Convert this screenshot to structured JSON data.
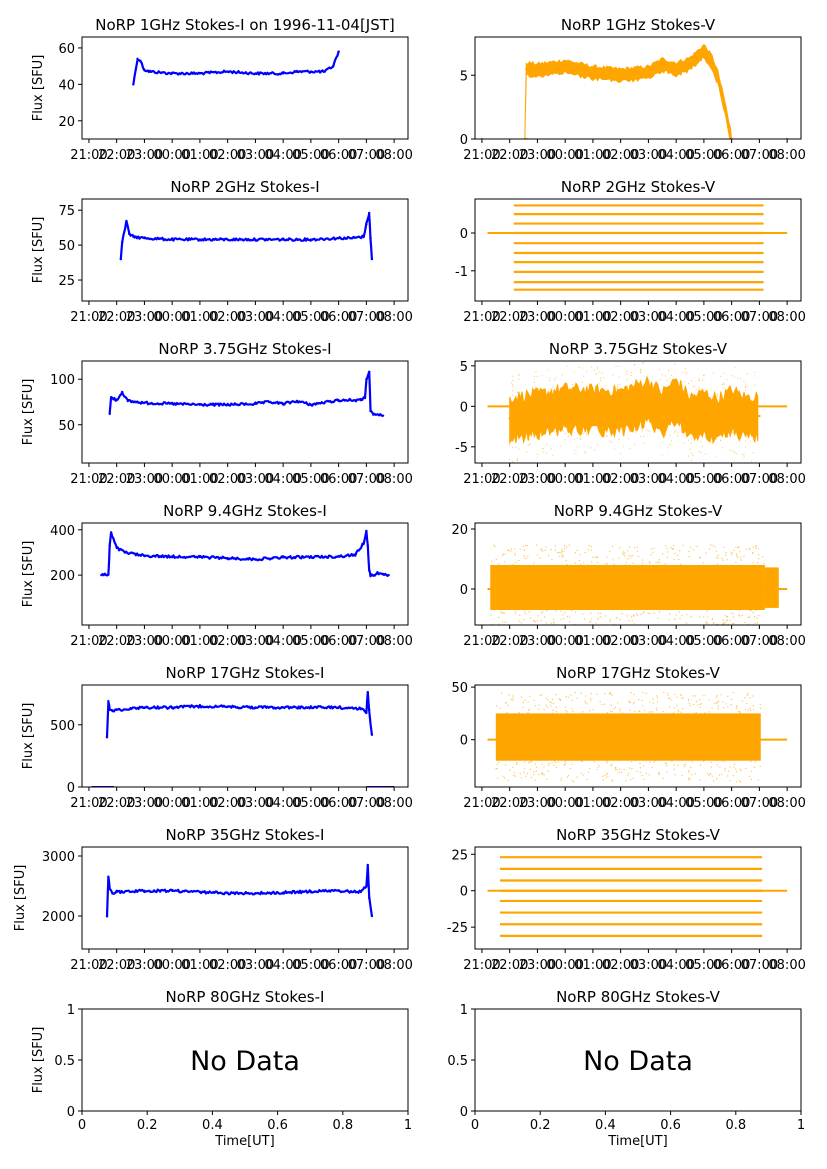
{
  "figure": {
    "ylabel": "Flux [SFU]",
    "xlabel": "Time[UT]",
    "time_ticks": [
      "21:00",
      "22:00",
      "23:00",
      "00:00",
      "01:00",
      "02:00",
      "03:00",
      "04:00",
      "05:00",
      "06:00",
      "07:00",
      "08:00"
    ],
    "colors": {
      "stokes_i": "#0000ff",
      "stokes_v": "#ffa500",
      "axes": "#000000",
      "bg": "#ffffff"
    }
  },
  "chart_data": [
    {
      "type": "line",
      "title": "NoRP 1GHz Stokes-I on 1996-11-04[JST]",
      "series_name": "Stokes-I",
      "color": "#0000ff",
      "xlim": [
        20.75,
        32.5
      ],
      "ylim": [
        10,
        66
      ],
      "yticks": [
        20,
        40,
        60
      ],
      "x": [
        22.6,
        22.75,
        22.85,
        23.0,
        23.2,
        24.0,
        25.0,
        26.0,
        27.0,
        28.0,
        28.5,
        29.0,
        29.5,
        29.8,
        30.0
      ],
      "y": [
        40,
        54,
        53,
        48,
        47,
        46,
        46,
        47,
        46,
        46,
        47,
        47,
        47,
        50,
        58
      ]
    },
    {
      "type": "scatter",
      "title": "NoRP 1GHz Stokes-V",
      "series_name": "Stokes-V",
      "color": "#ffa500",
      "xlim": [
        20.75,
        32.5
      ],
      "ylim": [
        0,
        8
      ],
      "yticks": [
        0,
        5
      ],
      "x": [
        21.0,
        22.6,
        22.6,
        23.0,
        24.0,
        25.0,
        26.0,
        27.0,
        27.5,
        28.0,
        28.5,
        28.7,
        29.0,
        29.3,
        29.5,
        29.7,
        29.8,
        29.9,
        30.0,
        32.0
      ],
      "y": [
        0,
        0,
        5.5,
        5.4,
        5.7,
        5.2,
        5.0,
        5.2,
        5.8,
        5.5,
        5.9,
        6.3,
        6.9,
        6.0,
        4.8,
        3.0,
        2.0,
        0.8,
        0,
        0
      ]
    },
    {
      "type": "line",
      "title": "NoRP 2GHz Stokes-I",
      "series_name": "Stokes-I",
      "color": "#0000ff",
      "xlim": [
        20.75,
        32.5
      ],
      "ylim": [
        10,
        83
      ],
      "yticks": [
        25,
        50,
        75
      ],
      "x": [
        22.15,
        22.2,
        22.35,
        22.45,
        22.6,
        23.0,
        24.0,
        25.0,
        26.0,
        27.0,
        28.0,
        29.0,
        30.0,
        30.5,
        30.9,
        31.0,
        31.1,
        31.15,
        31.2
      ],
      "y": [
        40,
        52,
        67,
        58,
        56,
        55,
        54,
        54,
        54,
        54,
        54,
        54,
        55,
        55,
        56,
        65,
        73,
        55,
        40
      ]
    },
    {
      "type": "scatter",
      "title": "NoRP 2GHz Stokes-V",
      "series_name": "Stokes-V",
      "color": "#ffa500",
      "xlim": [
        20.75,
        32.5
      ],
      "ylim": [
        -1.8,
        0.9
      ],
      "yticks": [
        -1,
        0
      ],
      "levels": [
        0.73,
        0.5,
        0.25,
        0,
        -0.27,
        -0.53,
        -0.77,
        -1.03,
        -1.3,
        -1.5
      ],
      "x_range": [
        22.15,
        31.15
      ],
      "zero_line": [
        21.2,
        32.0
      ]
    },
    {
      "type": "line",
      "title": "NoRP 3.75GHz Stokes-I",
      "series_name": "Stokes-I",
      "color": "#0000ff",
      "xlim": [
        20.75,
        32.5
      ],
      "ylim": [
        8,
        120
      ],
      "yticks": [
        50,
        100
      ],
      "x": [
        21.75,
        21.8,
        22.0,
        22.2,
        22.4,
        23.0,
        24.0,
        25.0,
        26.0,
        27.0,
        27.5,
        28.0,
        28.5,
        29.0,
        30.0,
        30.8,
        30.95,
        31.0,
        31.1,
        31.15,
        31.25,
        31.5,
        31.6
      ],
      "y": [
        62,
        80,
        77,
        86,
        76,
        74,
        73,
        72,
        72,
        73,
        75,
        73,
        76,
        72,
        77,
        77,
        80,
        100,
        108,
        65,
        61,
        61,
        60
      ]
    },
    {
      "type": "scatter",
      "title": "NoRP 3.75GHz Stokes-V",
      "series_name": "Stokes-V",
      "color": "#ffa500",
      "xlim": [
        20.75,
        32.5
      ],
      "ylim": [
        -7,
        5.6
      ],
      "yticks": [
        -5,
        0,
        5
      ],
      "x": [
        22.0,
        22.5,
        23.0,
        24.0,
        25.0,
        26.0,
        27.0,
        27.5,
        28.0,
        28.5,
        29.0,
        29.5,
        30.0,
        30.5,
        31.0
      ],
      "y": [
        -1.5,
        -1.2,
        -1.0,
        -0.3,
        -0.5,
        -0.6,
        0.7,
        -0.8,
        0.8,
        -1.4,
        -0.8,
        -1.6,
        -0.5,
        -1.4,
        -1.2
      ],
      "zero_line": [
        21.2,
        32.0
      ]
    },
    {
      "type": "line",
      "title": "NoRP 9.4GHz Stokes-I",
      "series_name": "Stokes-I",
      "color": "#0000ff",
      "xlim": [
        20.75,
        32.5
      ],
      "ylim": [
        -20,
        430
      ],
      "yticks": [
        200,
        400
      ],
      "x": [
        21.45,
        21.7,
        21.75,
        21.8,
        22.0,
        22.3,
        23.0,
        24.0,
        25.0,
        26.0,
        27.0,
        28.0,
        29.0,
        30.0,
        30.6,
        30.9,
        31.0,
        31.05,
        31.1,
        31.15,
        31.3,
        31.4,
        31.6,
        31.8
      ],
      "y": [
        200,
        202,
        330,
        385,
        320,
        300,
        285,
        282,
        280,
        275,
        270,
        278,
        280,
        282,
        290,
        340,
        395,
        330,
        220,
        200,
        198,
        210,
        205,
        200
      ]
    },
    {
      "type": "scatter",
      "title": "NoRP 9.4GHz Stokes-V",
      "series_name": "Stokes-V",
      "color": "#ffa500",
      "xlim": [
        20.75,
        32.5
      ],
      "ylim": [
        -12,
        22
      ],
      "yticks": [
        0,
        20
      ],
      "x_range": [
        21.3,
        31.2
      ],
      "band": [
        -7,
        8
      ],
      "edge_band": [
        31.2,
        31.7
      ],
      "zero_line": [
        21.2,
        32.0
      ]
    },
    {
      "type": "line",
      "title": "NoRP 17GHz Stokes-I",
      "series_name": "Stokes-I",
      "color": "#0000ff",
      "xlim": [
        20.75,
        32.5
      ],
      "ylim": [
        0,
        820
      ],
      "yticks": [
        0,
        500
      ],
      "x": [
        21.65,
        21.7,
        21.75,
        21.85,
        22.0,
        22.5,
        23.0,
        24.0,
        25.0,
        26.0,
        27.0,
        28.0,
        29.0,
        30.0,
        30.8,
        31.0,
        31.05,
        31.1,
        31.2
      ],
      "y": [
        400,
        690,
        620,
        610,
        620,
        630,
        640,
        640,
        650,
        645,
        640,
        640,
        640,
        640,
        630,
        600,
        760,
        620,
        420
      ],
      "baseline": {
        "y": 0,
        "segments": [
          [
            21.1,
            21.9
          ],
          [
            31.0,
            32.0
          ]
        ]
      }
    },
    {
      "type": "scatter",
      "title": "NoRP 17GHz Stokes-V",
      "series_name": "Stokes-V",
      "color": "#ffa500",
      "xlim": [
        20.75,
        32.5
      ],
      "ylim": [
        -45,
        52
      ],
      "yticks": [
        0,
        50
      ],
      "x_range": [
        21.5,
        31.05
      ],
      "band": [
        -20,
        25
      ],
      "zero_line": [
        21.2,
        32.0
      ]
    },
    {
      "type": "line",
      "title": "NoRP 35GHz Stokes-I",
      "series_name": "Stokes-I",
      "color": "#0000ff",
      "xlim": [
        20.75,
        32.5
      ],
      "ylim": [
        1450,
        3150
      ],
      "yticks": [
        2000,
        3000
      ],
      "x": [
        21.65,
        21.7,
        21.75,
        21.85,
        22.0,
        23.0,
        24.0,
        25.0,
        26.0,
        27.0,
        28.0,
        29.0,
        30.0,
        30.8,
        31.0,
        31.05,
        31.1,
        31.2
      ],
      "y": [
        2000,
        2650,
        2450,
        2380,
        2400,
        2420,
        2420,
        2400,
        2380,
        2380,
        2390,
        2410,
        2420,
        2400,
        2500,
        2850,
        2300,
        2000
      ]
    },
    {
      "type": "scatter",
      "title": "NoRP 35GHz Stokes-V",
      "series_name": "Stokes-V",
      "color": "#ffa500",
      "xlim": [
        20.75,
        32.5
      ],
      "ylim": [
        -40,
        30
      ],
      "yticks": [
        -25,
        0,
        25
      ],
      "levels": [
        23,
        15,
        7,
        0,
        -7,
        -15,
        -23,
        -31
      ],
      "x_range": [
        21.65,
        31.1
      ],
      "zero_line": [
        21.2,
        32.0
      ]
    },
    {
      "type": "line",
      "title": "NoRP 80GHz Stokes-I",
      "series_name": "Stokes-I",
      "color": "#0000ff",
      "xlim": [
        0,
        1
      ],
      "ylim": [
        0,
        1
      ],
      "yticks": [
        0.0,
        0.5,
        1.0
      ],
      "xticks": [
        0.0,
        0.2,
        0.4,
        0.6,
        0.8,
        1.0
      ],
      "x": [],
      "y": [],
      "message": "No Data"
    },
    {
      "type": "line",
      "title": "NoRP 80GHz Stokes-V",
      "series_name": "Stokes-V",
      "color": "#ffa500",
      "xlim": [
        0,
        1
      ],
      "ylim": [
        0,
        1
      ],
      "yticks": [
        0.0,
        0.5,
        1.0
      ],
      "xticks": [
        0.0,
        0.2,
        0.4,
        0.6,
        0.8,
        1.0
      ],
      "x": [],
      "y": [],
      "message": "No Data"
    }
  ]
}
